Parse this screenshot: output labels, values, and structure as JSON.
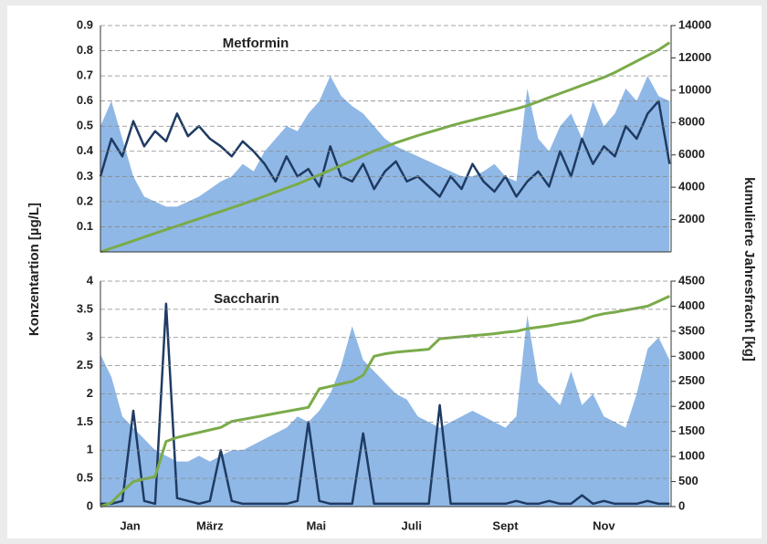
{
  "chart_data": [
    {
      "type": "line",
      "title": "Metformin",
      "ylabel": "Konzentartion [µg/L]",
      "y2label": "kumulierte Jahresfracht [kg]",
      "x": [
        0,
        7,
        14,
        21,
        28,
        35,
        42,
        49,
        56,
        63,
        70,
        77,
        84,
        91,
        98,
        105,
        112,
        119,
        126,
        133,
        140,
        147,
        154,
        161,
        168,
        175,
        182,
        189,
        196,
        203,
        210,
        217,
        224,
        231,
        238,
        245,
        252,
        259,
        266,
        273,
        280,
        287,
        294,
        301,
        308,
        315,
        322,
        329,
        336,
        343,
        350,
        357,
        364
      ],
      "xlim": [
        0,
        365
      ],
      "ylim": [
        0,
        0.9
      ],
      "yticks": [
        0.1,
        0.2,
        0.3,
        0.4,
        0.5,
        0.6,
        0.7,
        0.8,
        0.9
      ],
      "y2lim": [
        0,
        14000
      ],
      "y2ticks": [
        2000,
        4000,
        6000,
        8000,
        10000,
        12000,
        14000
      ],
      "grid": true,
      "series": [
        {
          "style": "area",
          "color": "#8fb8e6",
          "values": [
            0.5,
            0.6,
            0.45,
            0.3,
            0.22,
            0.2,
            0.18,
            0.18,
            0.2,
            0.22,
            0.25,
            0.28,
            0.3,
            0.35,
            0.32,
            0.4,
            0.45,
            0.5,
            0.48,
            0.55,
            0.6,
            0.7,
            0.62,
            0.58,
            0.55,
            0.5,
            0.45,
            0.42,
            0.4,
            0.38,
            0.36,
            0.34,
            0.32,
            0.3,
            0.3,
            0.32,
            0.35,
            0.3,
            0.28,
            0.65,
            0.45,
            0.4,
            0.5,
            0.55,
            0.45,
            0.6,
            0.5,
            0.55,
            0.65,
            0.6,
            0.7,
            0.62,
            0.6
          ]
        },
        {
          "style": "line",
          "color": "#1f3b63",
          "values": [
            0.3,
            0.45,
            0.38,
            0.52,
            0.42,
            0.48,
            0.44,
            0.55,
            0.46,
            0.5,
            0.45,
            0.42,
            0.38,
            0.44,
            0.4,
            0.35,
            0.28,
            0.38,
            0.3,
            0.33,
            0.26,
            0.42,
            0.3,
            0.28,
            0.35,
            0.25,
            0.32,
            0.36,
            0.28,
            0.3,
            0.26,
            0.22,
            0.3,
            0.25,
            0.35,
            0.28,
            0.24,
            0.3,
            0.22,
            0.28,
            0.32,
            0.26,
            0.4,
            0.3,
            0.45,
            0.35,
            0.42,
            0.38,
            0.5,
            0.45,
            0.55,
            0.6,
            0.35
          ]
        },
        {
          "style": "line",
          "color": "#7aab4a",
          "axis": "y2",
          "values": [
            0,
            230,
            460,
            690,
            920,
            1150,
            1380,
            1600,
            1830,
            2050,
            2280,
            2500,
            2730,
            2960,
            3200,
            3450,
            3700,
            3950,
            4200,
            4480,
            4760,
            5050,
            5350,
            5650,
            5950,
            6250,
            6500,
            6750,
            6980,
            7200,
            7400,
            7600,
            7800,
            7980,
            8150,
            8330,
            8500,
            8680,
            8850,
            9050,
            9300,
            9550,
            9800,
            10050,
            10300,
            10550,
            10800,
            11100,
            11450,
            11800,
            12150,
            12500,
            12950
          ]
        }
      ]
    },
    {
      "type": "line",
      "title": "Saccharin",
      "x": [
        0,
        7,
        14,
        21,
        28,
        35,
        42,
        49,
        56,
        63,
        70,
        77,
        84,
        91,
        98,
        105,
        112,
        119,
        126,
        133,
        140,
        147,
        154,
        161,
        168,
        175,
        182,
        189,
        196,
        203,
        210,
        217,
        224,
        231,
        238,
        245,
        252,
        259,
        266,
        273,
        280,
        287,
        294,
        301,
        308,
        315,
        322,
        329,
        336,
        343,
        350,
        357,
        364
      ],
      "xlim": [
        0,
        365
      ],
      "xticks": [
        {
          "value": 19,
          "label": "Jan"
        },
        {
          "value": 70,
          "label": "März"
        },
        {
          "value": 138,
          "label": "Mai"
        },
        {
          "value": 199,
          "label": "Juli"
        },
        {
          "value": 259,
          "label": "Sept"
        },
        {
          "value": 322,
          "label": "Nov"
        }
      ],
      "ylim": [
        0,
        4
      ],
      "yticks": [
        0,
        0.5,
        1,
        1.5,
        2,
        2.5,
        3,
        3.5,
        4
      ],
      "y2lim": [
        0,
        4500
      ],
      "y2ticks": [
        0,
        500,
        1000,
        1500,
        2000,
        2500,
        3000,
        3500,
        4000,
        4500
      ],
      "grid": true,
      "series": [
        {
          "style": "area",
          "color": "#8fb8e6",
          "values": [
            2.7,
            2.3,
            1.6,
            1.4,
            1.2,
            1.0,
            0.9,
            0.8,
            0.8,
            0.9,
            0.8,
            0.9,
            1.0,
            1.0,
            1.1,
            1.2,
            1.3,
            1.4,
            1.6,
            1.5,
            1.7,
            2.0,
            2.5,
            3.2,
            2.6,
            2.4,
            2.2,
            2.0,
            1.9,
            1.6,
            1.5,
            1.4,
            1.5,
            1.6,
            1.7,
            1.6,
            1.5,
            1.4,
            1.6,
            3.4,
            2.2,
            2.0,
            1.8,
            2.4,
            1.8,
            2.0,
            1.6,
            1.5,
            1.4,
            2.0,
            2.8,
            3.0,
            2.6
          ]
        },
        {
          "style": "line",
          "color": "#1f3b63",
          "values": [
            0.05,
            0.05,
            0.1,
            1.7,
            0.1,
            0.05,
            3.6,
            0.15,
            0.1,
            0.05,
            0.1,
            1.0,
            0.1,
            0.05,
            0.05,
            0.05,
            0.05,
            0.05,
            0.1,
            1.5,
            0.1,
            0.05,
            0.05,
            0.05,
            1.3,
            0.05,
            0.05,
            0.05,
            0.05,
            0.05,
            0.05,
            1.8,
            0.05,
            0.05,
            0.05,
            0.05,
            0.05,
            0.05,
            0.1,
            0.05,
            0.05,
            0.1,
            0.05,
            0.05,
            0.2,
            0.05,
            0.1,
            0.05,
            0.05,
            0.05,
            0.1,
            0.05,
            0.05
          ]
        },
        {
          "style": "line",
          "color": "#7aab4a",
          "axis": "y2",
          "values": [
            0,
            80,
            300,
            500,
            550,
            600,
            1300,
            1380,
            1430,
            1480,
            1530,
            1580,
            1700,
            1740,
            1780,
            1820,
            1860,
            1900,
            1940,
            1980,
            2350,
            2400,
            2450,
            2500,
            2620,
            3000,
            3050,
            3080,
            3100,
            3120,
            3140,
            3350,
            3370,
            3390,
            3410,
            3430,
            3450,
            3480,
            3500,
            3550,
            3580,
            3610,
            3650,
            3680,
            3720,
            3800,
            3850,
            3880,
            3920,
            3960,
            4000,
            4100,
            4200
          ]
        }
      ]
    }
  ]
}
